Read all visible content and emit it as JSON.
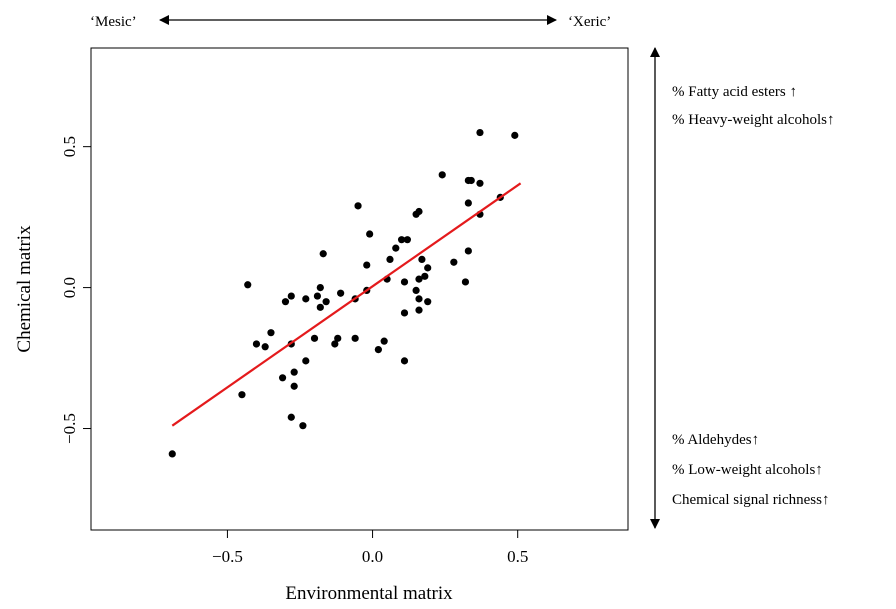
{
  "chart_data": {
    "type": "scatter",
    "xlabel": "Environmental matrix",
    "ylabel": "Chemical matrix",
    "xlim": [
      -0.97,
      0.88
    ],
    "ylim": [
      -0.86,
      0.85
    ],
    "x_ticks": [
      -0.5,
      0.0,
      0.5
    ],
    "x_tick_labels": [
      "−0.5",
      "0.0",
      "0.5"
    ],
    "y_ticks": [
      -0.5,
      0.0,
      0.5
    ],
    "y_tick_labels": [
      "−0.5",
      "0.0",
      "0.5"
    ],
    "grid": false,
    "point_color": "#000000",
    "regression_line": {
      "color": "#e41a1c",
      "x": [
        -0.69,
        0.51
      ],
      "y": [
        -0.49,
        0.37
      ]
    },
    "gradient_top": {
      "left": "‘Mesic’",
      "right": "‘Xeric’"
    },
    "side_annotations_top": [
      "% Fatty acid esters ↑",
      "% Heavy-weight alcohols↑"
    ],
    "side_annotations_bottom": [
      "% Aldehydes↑",
      "% Low-weight alcohols↑",
      "Chemical signal richness↑"
    ],
    "points": [
      {
        "x": -0.69,
        "y": -0.59
      },
      {
        "x": -0.45,
        "y": -0.38
      },
      {
        "x": -0.43,
        "y": 0.01
      },
      {
        "x": -0.4,
        "y": -0.2
      },
      {
        "x": -0.37,
        "y": -0.21
      },
      {
        "x": -0.35,
        "y": -0.16
      },
      {
        "x": -0.31,
        "y": -0.32
      },
      {
        "x": -0.3,
        "y": -0.05
      },
      {
        "x": -0.28,
        "y": -0.46
      },
      {
        "x": -0.28,
        "y": -0.2
      },
      {
        "x": -0.27,
        "y": -0.3
      },
      {
        "x": -0.27,
        "y": -0.35
      },
      {
        "x": -0.28,
        "y": -0.03
      },
      {
        "x": -0.24,
        "y": -0.49
      },
      {
        "x": -0.23,
        "y": -0.26
      },
      {
        "x": -0.23,
        "y": -0.04
      },
      {
        "x": -0.2,
        "y": -0.18
      },
      {
        "x": -0.19,
        "y": -0.03
      },
      {
        "x": -0.18,
        "y": 0.0
      },
      {
        "x": -0.18,
        "y": -0.07
      },
      {
        "x": -0.17,
        "y": 0.12
      },
      {
        "x": -0.16,
        "y": -0.05
      },
      {
        "x": -0.13,
        "y": -0.2
      },
      {
        "x": -0.12,
        "y": -0.18
      },
      {
        "x": -0.11,
        "y": -0.02
      },
      {
        "x": -0.06,
        "y": -0.18
      },
      {
        "x": -0.06,
        "y": -0.04
      },
      {
        "x": -0.05,
        "y": 0.29
      },
      {
        "x": -0.02,
        "y": 0.08
      },
      {
        "x": -0.02,
        "y": -0.01
      },
      {
        "x": -0.01,
        "y": 0.19
      },
      {
        "x": 0.02,
        "y": -0.22
      },
      {
        "x": 0.04,
        "y": -0.19
      },
      {
        "x": 0.05,
        "y": 0.03
      },
      {
        "x": 0.06,
        "y": 0.1
      },
      {
        "x": 0.08,
        "y": 0.14
      },
      {
        "x": 0.1,
        "y": 0.17
      },
      {
        "x": 0.11,
        "y": 0.02
      },
      {
        "x": 0.11,
        "y": -0.26
      },
      {
        "x": 0.11,
        "y": -0.09
      },
      {
        "x": 0.12,
        "y": 0.17
      },
      {
        "x": 0.15,
        "y": -0.01
      },
      {
        "x": 0.15,
        "y": 0.26
      },
      {
        "x": 0.16,
        "y": 0.27
      },
      {
        "x": 0.16,
        "y": 0.03
      },
      {
        "x": 0.16,
        "y": -0.04
      },
      {
        "x": 0.16,
        "y": -0.08
      },
      {
        "x": 0.17,
        "y": 0.1
      },
      {
        "x": 0.18,
        "y": 0.04
      },
      {
        "x": 0.19,
        "y": 0.07
      },
      {
        "x": 0.19,
        "y": -0.05
      },
      {
        "x": 0.24,
        "y": 0.4
      },
      {
        "x": 0.28,
        "y": 0.09
      },
      {
        "x": 0.32,
        "y": 0.02
      },
      {
        "x": 0.33,
        "y": 0.13
      },
      {
        "x": 0.33,
        "y": 0.3
      },
      {
        "x": 0.33,
        "y": 0.38
      },
      {
        "x": 0.34,
        "y": 0.38
      },
      {
        "x": 0.37,
        "y": 0.37
      },
      {
        "x": 0.37,
        "y": 0.26
      },
      {
        "x": 0.37,
        "y": 0.55
      },
      {
        "x": 0.44,
        "y": 0.32
      },
      {
        "x": 0.49,
        "y": 0.54
      }
    ]
  }
}
